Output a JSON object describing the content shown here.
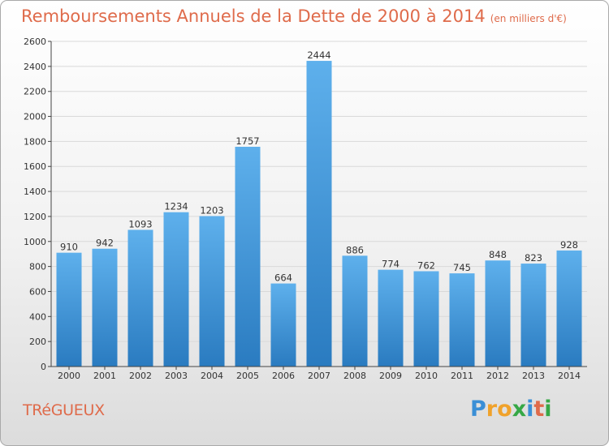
{
  "title": "Remboursements Annuels de la Dette de 2000 à 2014",
  "unit": "(en milliers d'€)",
  "commune": "TRéGUEUX",
  "logo": {
    "letters": [
      "P",
      "r",
      "o",
      "x",
      "i",
      "t",
      "i"
    ],
    "colors": [
      "#3a8fd6",
      "#f0a22b",
      "#f0a22b",
      "#36a846",
      "#3a8fd6",
      "#df6b4b",
      "#36a846"
    ]
  },
  "colors": {
    "bar_top": "#5eb0ec",
    "bar_bottom": "#2a7bc0",
    "title": "#df6b4b",
    "grid": "#d9d9d9"
  },
  "chart_data": {
    "type": "bar",
    "title": "Remboursements Annuels de la Dette de 2000 à 2014",
    "xlabel": "",
    "ylabel": "",
    "categories": [
      "2000",
      "2001",
      "2002",
      "2003",
      "2004",
      "2005",
      "2006",
      "2007",
      "2008",
      "2009",
      "2010",
      "2011",
      "2012",
      "2013",
      "2014"
    ],
    "values": [
      910,
      942,
      1093,
      1234,
      1203,
      1757,
      664,
      2444,
      886,
      774,
      762,
      745,
      848,
      823,
      928
    ],
    "ylim": [
      0,
      2600
    ],
    "yticks": [
      0,
      200,
      400,
      600,
      800,
      1000,
      1200,
      1400,
      1600,
      1800,
      2000,
      2200,
      2400,
      2600
    ],
    "grid": true,
    "data_labels": true
  }
}
